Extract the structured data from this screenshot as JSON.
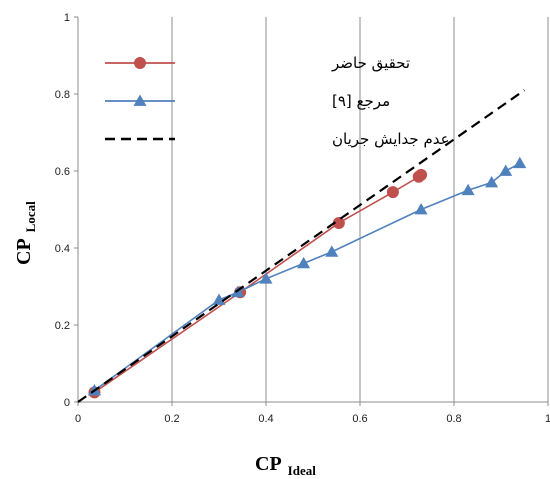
{
  "chart_data": {
    "type": "line",
    "xlabel": {
      "main": "CP",
      "sub": "Ideal"
    },
    "ylabel": {
      "main": "CP",
      "sub": "Local"
    },
    "xlim": [
      0,
      1
    ],
    "ylim": [
      0,
      1
    ],
    "x_ticks": [
      "0",
      "0.2",
      "0.4",
      "0.6",
      "0.8",
      "1"
    ],
    "y_ticks": [
      "0",
      "0.2",
      "0.4",
      "0.6",
      "0.8",
      "1"
    ],
    "grid": "vertical-major",
    "legend_position": "top-left",
    "series": [
      {
        "name": "تحقیق حاضر",
        "color": "#c0504d",
        "marker": "circle",
        "points": [
          [
            0.035,
            0.025
          ],
          [
            0.345,
            0.285
          ],
          [
            0.555,
            0.465
          ],
          [
            0.67,
            0.545
          ],
          [
            0.725,
            0.585
          ],
          [
            0.73,
            0.59
          ]
        ]
      },
      {
        "name": "مرجع [۹]",
        "color": "#4f81bd",
        "marker": "triangle",
        "points": [
          [
            0.035,
            0.03
          ],
          [
            0.3,
            0.265
          ],
          [
            0.34,
            0.285
          ],
          [
            0.4,
            0.32
          ],
          [
            0.48,
            0.36
          ],
          [
            0.54,
            0.39
          ],
          [
            0.73,
            0.5
          ],
          [
            0.83,
            0.55
          ],
          [
            0.88,
            0.57
          ],
          [
            0.91,
            0.6
          ],
          [
            0.94,
            0.62
          ]
        ]
      },
      {
        "name": "عدم جدایش جریان",
        "color": "#000000",
        "style": "dashed",
        "points": [
          [
            0,
            0
          ],
          [
            0.95,
            0.81
          ]
        ]
      }
    ]
  }
}
